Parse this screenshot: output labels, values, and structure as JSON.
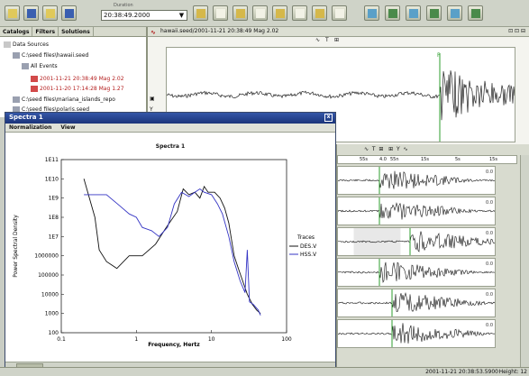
{
  "toolbar": {
    "time_caption": "Duration",
    "time_value": "20:38:49.2000",
    "left_icons": [
      "open-icon",
      "save-icon",
      "folder-icon",
      "globe-icon"
    ],
    "center_icons": [
      "page-icon",
      "pdf-icon",
      "doc-icon",
      "chart-icon",
      "filter-icon",
      "map-icon",
      "station-icon",
      "copy-icon"
    ],
    "right_icons": [
      "pick-icon",
      "pick2-icon",
      "pick3-icon",
      "pick4-icon",
      "pick5-icon",
      "pick6-icon"
    ]
  },
  "left_panel": {
    "tabs": [
      "Catalogs",
      "Filters",
      "Solutions"
    ],
    "tree": [
      {
        "label": "Data Sources",
        "indent": 0
      },
      {
        "label": "C:\\seed files\\hawaii.seed",
        "indent": 1
      },
      {
        "label": "All Events",
        "indent": 2
      },
      {
        "label": "2001-11-21 20:38:49 Mag 2.02",
        "indent": 3,
        "red": true
      },
      {
        "label": "2001-11-20 17:14:28 Mag 1.27",
        "indent": 3,
        "red": true
      },
      {
        "label": "C:\\seed files\\mariana_islands_repo",
        "indent": 1
      },
      {
        "label": "C:\\seed files\\polaris.seed",
        "indent": 1
      }
    ]
  },
  "top_view": {
    "title": "hawaii.seed/2001-11-21 20:38:49 Mag 2.02",
    "tools": [
      "∿",
      "T",
      "⊞"
    ],
    "corner_tools": [
      "⊡",
      "⊡",
      "⊟"
    ],
    "side": [
      "▣",
      "Y",
      "∿"
    ]
  },
  "right_view": {
    "tools": [
      "∿",
      "T",
      "⊞",
      "⊞",
      "Y",
      "∿"
    ],
    "ruler_labels": [
      "55s",
      "4.0",
      "55n",
      "15s",
      "5s",
      "15s"
    ],
    "channel_values": [
      "0.0",
      "0.0",
      "0.0",
      "0.0",
      "0.0",
      "0.0"
    ]
  },
  "status": {
    "time": "2001-11-21 20:38:53.5900",
    "height": "Height: 12"
  },
  "spectra_window": {
    "title": "Spectra 1",
    "menu": [
      "Normalization",
      "View"
    ],
    "close": "x"
  },
  "chart_data": {
    "type": "line",
    "title": "Spectra 1",
    "xlabel": "Frequency, Hertz",
    "ylabel": "Power Spectral Density",
    "x_scale": "log",
    "y_scale": "log",
    "xlim": [
      0.1,
      100
    ],
    "ylim": [
      100,
      100000000000.0
    ],
    "x_ticks": [
      "0.1",
      "1",
      "10",
      "100"
    ],
    "y_ticks": [
      "1E11",
      "1E10",
      "1E9",
      "1E8",
      "1E7",
      "1000000",
      "100000",
      "10000",
      "1000",
      "100"
    ],
    "legend_title": "Traces",
    "legend_position": "right",
    "series": [
      {
        "name": "DES.V",
        "color": "#111111",
        "points": [
          [
            0.2,
            10000000000.0
          ],
          [
            0.28,
            100000000.0
          ],
          [
            0.32,
            2000000.0
          ],
          [
            0.4,
            500000.0
          ],
          [
            0.55,
            220000.0
          ],
          [
            0.8,
            1000000.0
          ],
          [
            1.2,
            1000000.0
          ],
          [
            1.8,
            4000000.0
          ],
          [
            2.5,
            30000000.0
          ],
          [
            3.5,
            200000000.0
          ],
          [
            4.2,
            3000000000.0
          ],
          [
            5,
            1500000000.0
          ],
          [
            6,
            2000000000.0
          ],
          [
            7,
            1000000000.0
          ],
          [
            8,
            4000000000.0
          ],
          [
            9,
            2000000000.0
          ],
          [
            11,
            2000000000.0
          ],
          [
            13,
            1000000000.0
          ],
          [
            15,
            300000000.0
          ],
          [
            17,
            50000000.0
          ],
          [
            20,
            1000000.0
          ],
          [
            23,
            200000.0
          ],
          [
            26,
            50000.0
          ],
          [
            30,
            10000.0
          ],
          [
            35,
            3000.0
          ],
          [
            40,
            1500.0
          ],
          [
            45,
            1000.0
          ]
        ]
      },
      {
        "name": "HSS.V",
        "color": "#3434c4",
        "points": [
          [
            0.2,
            1500000000.0
          ],
          [
            0.4,
            1500000000.0
          ],
          [
            0.6,
            400000000.0
          ],
          [
            0.8,
            150000000.0
          ],
          [
            1.0,
            100000000.0
          ],
          [
            1.2,
            30000000.0
          ],
          [
            1.6,
            20000000.0
          ],
          [
            2.0,
            10000000.0
          ],
          [
            2.6,
            30000000.0
          ],
          [
            3.2,
            500000000.0
          ],
          [
            4.0,
            2000000000.0
          ],
          [
            5,
            1200000000.0
          ],
          [
            6,
            2000000000.0
          ],
          [
            7,
            3000000000.0
          ],
          [
            8,
            2000000000.0
          ],
          [
            10,
            1500000000.0
          ],
          [
            12,
            500000000.0
          ],
          [
            14,
            150000000.0
          ],
          [
            17,
            10000000.0
          ],
          [
            20,
            500000.0
          ],
          [
            24,
            50000.0
          ],
          [
            28,
            12000.0
          ],
          [
            30,
            2000000.0
          ],
          [
            32,
            4000.0
          ],
          [
            36,
            3000.0
          ],
          [
            42,
            1500.0
          ],
          [
            45,
            800
          ]
        ]
      }
    ]
  }
}
